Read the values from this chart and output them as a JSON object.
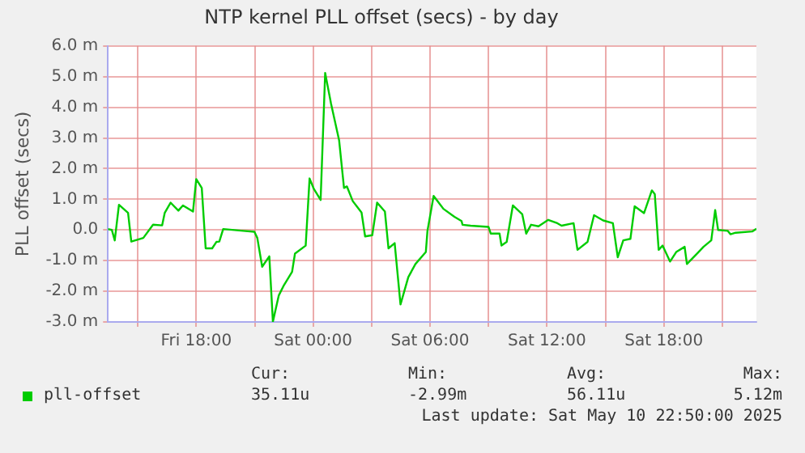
{
  "chart_data": {
    "type": "line",
    "title": "NTP kernel PLL offset (secs) - by day",
    "ylabel": "PLL offset (secs)",
    "xlim": [
      "2025-05-09T13:28",
      "2025-05-10T22:45"
    ],
    "xticks": [
      {
        "value": "2025-05-09T15:00",
        "label": null
      },
      {
        "value": "2025-05-09T18:00",
        "label": "Fri 18:00"
      },
      {
        "value": "2025-05-09T21:00",
        "label": null
      },
      {
        "value": "2025-05-10T00:00",
        "label": "Sat 00:00"
      },
      {
        "value": "2025-05-10T03:00",
        "label": null
      },
      {
        "value": "2025-05-10T06:00",
        "label": "Sat 06:00"
      },
      {
        "value": "2025-05-10T09:00",
        "label": null
      },
      {
        "value": "2025-05-10T12:00",
        "label": "Sat 12:00"
      },
      {
        "value": "2025-05-10T15:00",
        "label": null
      },
      {
        "value": "2025-05-10T18:00",
        "label": "Sat 18:00"
      },
      {
        "value": "2025-05-10T21:00",
        "label": null
      }
    ],
    "ylim": [
      -3,
      6
    ],
    "yticks": [
      {
        "value": -3,
        "label": "-3.0 m"
      },
      {
        "value": -2,
        "label": "-2.0 m"
      },
      {
        "value": -1,
        "label": "-1.0 m"
      },
      {
        "value": 0,
        "label": "0.0"
      },
      {
        "value": 1,
        "label": "1.0 m"
      },
      {
        "value": 2,
        "label": "2.0 m"
      },
      {
        "value": 3,
        "label": "3.0 m"
      },
      {
        "value": 4,
        "label": "4.0 m"
      },
      {
        "value": 5,
        "label": "5.0 m"
      },
      {
        "value": 6,
        "label": "6.0 m"
      }
    ],
    "grid": true,
    "legend": "bottom left",
    "marker": "none",
    "line_style": "solid",
    "series": [
      {
        "name": "pll-offset",
        "color": "#00cc00",
        "x": [
          "2025-05-09T13:28",
          "2025-05-09T13:40",
          "2025-05-09T13:49",
          "2025-05-09T14:02",
          "2025-05-09T14:30",
          "2025-05-09T14:40",
          "2025-05-09T15:17",
          "2025-05-09T15:47",
          "2025-05-09T16:15",
          "2025-05-09T16:23",
          "2025-05-09T16:41",
          "2025-05-09T17:05",
          "2025-05-09T17:19",
          "2025-05-09T17:50",
          "2025-05-09T18:00",
          "2025-05-09T18:17",
          "2025-05-09T18:29",
          "2025-05-09T18:49",
          "2025-05-09T19:02",
          "2025-05-09T19:11",
          "2025-05-09T19:23",
          "2025-05-09T20:25",
          "2025-05-09T20:59",
          "2025-05-09T21:08",
          "2025-05-09T21:23",
          "2025-05-09T21:45",
          "2025-05-09T21:56",
          "2025-05-09T22:14",
          "2025-05-09T22:30",
          "2025-05-09T22:55",
          "2025-05-09T23:04",
          "2025-05-09T23:37",
          "2025-05-09T23:49",
          "2025-05-10T00:02",
          "2025-05-10T00:23",
          "2025-05-10T00:37",
          "2025-05-10T00:55",
          "2025-05-10T01:20",
          "2025-05-10T01:35",
          "2025-05-10T01:44",
          "2025-05-10T02:02",
          "2025-05-10T02:29",
          "2025-05-10T02:40",
          "2025-05-10T03:02",
          "2025-05-10T03:17",
          "2025-05-10T03:41",
          "2025-05-10T03:52",
          "2025-05-10T04:11",
          "2025-05-10T04:29",
          "2025-05-10T04:53",
          "2025-05-10T05:15",
          "2025-05-10T05:47",
          "2025-05-10T05:52",
          "2025-05-10T06:11",
          "2025-05-10T06:41",
          "2025-05-10T07:15",
          "2025-05-10T07:37",
          "2025-05-10T07:40",
          "2025-05-10T08:05",
          "2025-05-10T09:00",
          "2025-05-10T09:07",
          "2025-05-10T09:34",
          "2025-05-10T09:40",
          "2025-05-10T09:56",
          "2025-05-10T10:15",
          "2025-05-10T10:44",
          "2025-05-10T10:56",
          "2025-05-10T11:11",
          "2025-05-10T11:34",
          "2025-05-10T12:04",
          "2025-05-10T12:32",
          "2025-05-10T12:45",
          "2025-05-10T13:22",
          "2025-05-10T13:34",
          "2025-05-10T14:05",
          "2025-05-10T14:25",
          "2025-05-10T14:53",
          "2025-05-10T15:23",
          "2025-05-10T15:38",
          "2025-05-10T15:55",
          "2025-05-10T16:17",
          "2025-05-10T16:30",
          "2025-05-10T16:59",
          "2025-05-10T17:23",
          "2025-05-10T17:32",
          "2025-05-10T17:44",
          "2025-05-10T17:56",
          "2025-05-10T18:19",
          "2025-05-10T18:38",
          "2025-05-10T19:04",
          "2025-05-10T19:11",
          "2025-05-10T19:45",
          "2025-05-10T20:02",
          "2025-05-10T20:26",
          "2025-05-10T20:38",
          "2025-05-10T20:47",
          "2025-05-10T21:17",
          "2025-05-10T21:25",
          "2025-05-10T21:41",
          "2025-05-10T22:32",
          "2025-05-10T22:45"
        ],
        "values": [
          0.03,
          0.0,
          -0.34,
          0.82,
          0.56,
          -0.38,
          -0.26,
          0.17,
          0.15,
          0.56,
          0.89,
          0.63,
          0.8,
          0.6,
          1.66,
          1.37,
          -0.6,
          -0.6,
          -0.39,
          -0.38,
          0.03,
          -0.03,
          -0.06,
          -0.26,
          -1.2,
          -0.86,
          -2.99,
          -2.14,
          -1.8,
          -1.37,
          -0.77,
          -0.51,
          1.68,
          1.34,
          0.98,
          5.12,
          4.12,
          2.92,
          1.37,
          1.42,
          0.94,
          0.57,
          -0.21,
          -0.17,
          0.89,
          0.6,
          -0.6,
          -0.43,
          -2.43,
          -1.54,
          -1.11,
          -0.72,
          -0.03,
          1.11,
          0.69,
          0.43,
          0.29,
          0.17,
          0.14,
          0.1,
          -0.12,
          -0.12,
          -0.51,
          -0.39,
          0.8,
          0.51,
          -0.12,
          0.17,
          0.12,
          0.33,
          0.22,
          0.14,
          0.22,
          -0.65,
          -0.39,
          0.48,
          0.31,
          0.22,
          -0.89,
          -0.34,
          -0.29,
          0.77,
          0.55,
          1.29,
          1.17,
          -0.65,
          -0.51,
          -1.03,
          -0.72,
          -0.55,
          -1.11,
          -0.74,
          -0.55,
          -0.34,
          0.65,
          0.0,
          -0.03,
          -0.14,
          -0.09,
          -0.05,
          0.04
        ]
      }
    ],
    "annotations": [
      "Cur:",
      "Min:",
      "Avg:",
      "Max:",
      "35.11u",
      "-2.99m",
      "56.11u",
      "5.12m",
      "Last update: Sat May 10 22:50:00 2025"
    ]
  }
}
